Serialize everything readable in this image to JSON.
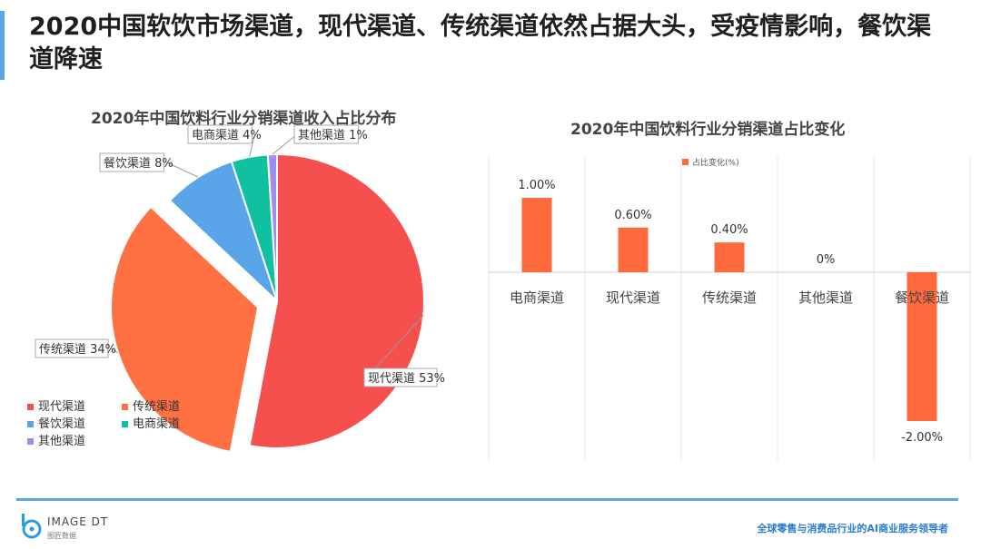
{
  "title": "2020中国软饮市场渠道，现代渠道、传统渠道依然占据大头，受疫情影响，餐饮渠道降速",
  "footer": {
    "logo_text": "IMAGE DT",
    "logo_sub": "图匠数据",
    "tagline": "全球零售与消费品行业的AI商业服务领导者"
  },
  "colors": {
    "accent": "#5aa7e6",
    "tagline": "#2a7bd1"
  },
  "chart_data": [
    {
      "type": "pie",
      "title": "2020年中国饮料行业分销渠道收入占比分布",
      "slices": [
        {
          "label": "现代渠道",
          "value": 53,
          "display": "现代渠道 53%",
          "color": "#f5504e",
          "exploded": false
        },
        {
          "label": "传统渠道",
          "value": 34,
          "display": "传统渠道 34%",
          "color": "#ff7043",
          "exploded": true
        },
        {
          "label": "餐饮渠道",
          "value": 8,
          "display": "餐饮渠道 8%",
          "color": "#5aa5ea",
          "exploded": false
        },
        {
          "label": "电商渠道",
          "value": 4,
          "display": "电商渠道 4%",
          "color": "#10c0a0",
          "exploded": false
        },
        {
          "label": "其他渠道",
          "value": 1,
          "display": "其他渠道 1%",
          "color": "#9e8cf0",
          "exploded": false
        }
      ],
      "legend": [
        "现代渠道",
        "传统渠道",
        "餐饮渠道",
        "电商渠道",
        "其他渠道"
      ],
      "legend_position": "bottom-left"
    },
    {
      "type": "bar",
      "title": "2020年中国饮料行业分销渠道占比变化",
      "categories": [
        "电商渠道",
        "现代渠道",
        "传统渠道",
        "其他渠道",
        "餐饮渠道"
      ],
      "series": [
        {
          "name": "占比变化(%)",
          "values": [
            1.0,
            0.6,
            0.4,
            0,
            -2.0
          ],
          "labels": [
            "1.00%",
            "0.60%",
            "0.40%",
            "0%",
            "-2.00%"
          ],
          "color": "#ff6a3d"
        }
      ],
      "ylim": [
        -2.5,
        1.5
      ],
      "grid": "vertical",
      "legend_position": "top"
    }
  ]
}
